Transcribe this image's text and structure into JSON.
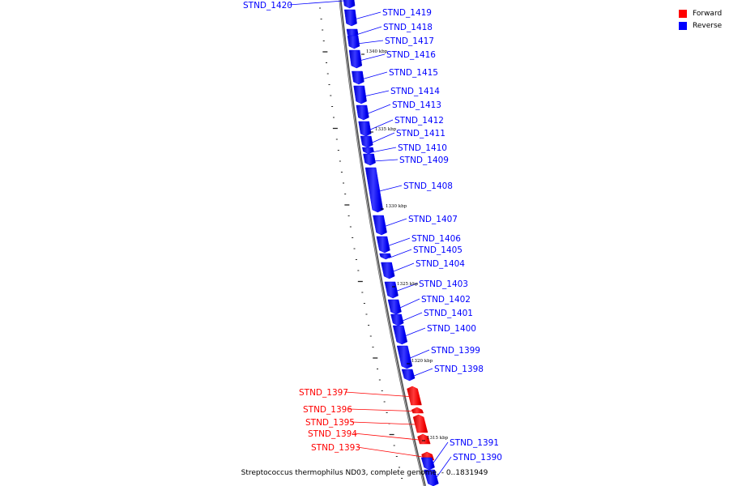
{
  "legend": {
    "forward": {
      "label": "Forward",
      "color": "#ff0000"
    },
    "reverse": {
      "label": "Reverse",
      "color": "#0000ff"
    }
  },
  "caption": "Streptococcus thermophilus ND03, complete genome. - 0..1831949",
  "scale_marks": [
    "1340 kbp",
    "1335 kbp",
    "1330 kbp",
    "1325 kbp",
    "1320 kbp",
    "1315 kbp"
  ],
  "genes": [
    {
      "name": "STND_1420",
      "strand": "reverse"
    },
    {
      "name": "STND_1419",
      "strand": "reverse"
    },
    {
      "name": "STND_1418",
      "strand": "reverse"
    },
    {
      "name": "STND_1417",
      "strand": "reverse"
    },
    {
      "name": "STND_1416",
      "strand": "reverse"
    },
    {
      "name": "STND_1415",
      "strand": "reverse"
    },
    {
      "name": "STND_1414",
      "strand": "reverse"
    },
    {
      "name": "STND_1413",
      "strand": "reverse"
    },
    {
      "name": "STND_1412",
      "strand": "reverse"
    },
    {
      "name": "STND_1411",
      "strand": "reverse"
    },
    {
      "name": "STND_1410",
      "strand": "reverse"
    },
    {
      "name": "STND_1409",
      "strand": "reverse"
    },
    {
      "name": "STND_1408",
      "strand": "reverse"
    },
    {
      "name": "STND_1407",
      "strand": "reverse"
    },
    {
      "name": "STND_1406",
      "strand": "reverse"
    },
    {
      "name": "STND_1405",
      "strand": "reverse"
    },
    {
      "name": "STND_1404",
      "strand": "reverse"
    },
    {
      "name": "STND_1403",
      "strand": "reverse"
    },
    {
      "name": "STND_1402",
      "strand": "reverse"
    },
    {
      "name": "STND_1401",
      "strand": "reverse"
    },
    {
      "name": "STND_1400",
      "strand": "reverse"
    },
    {
      "name": "STND_1399",
      "strand": "reverse"
    },
    {
      "name": "STND_1398",
      "strand": "reverse"
    },
    {
      "name": "STND_1397",
      "strand": "forward"
    },
    {
      "name": "STND_1396",
      "strand": "forward"
    },
    {
      "name": "STND_1395",
      "strand": "forward"
    },
    {
      "name": "STND_1394",
      "strand": "forward"
    },
    {
      "name": "STND_1393",
      "strand": "forward"
    },
    {
      "name": "STND_1391",
      "strand": "reverse"
    },
    {
      "name": "STND_1390",
      "strand": "reverse"
    }
  ]
}
